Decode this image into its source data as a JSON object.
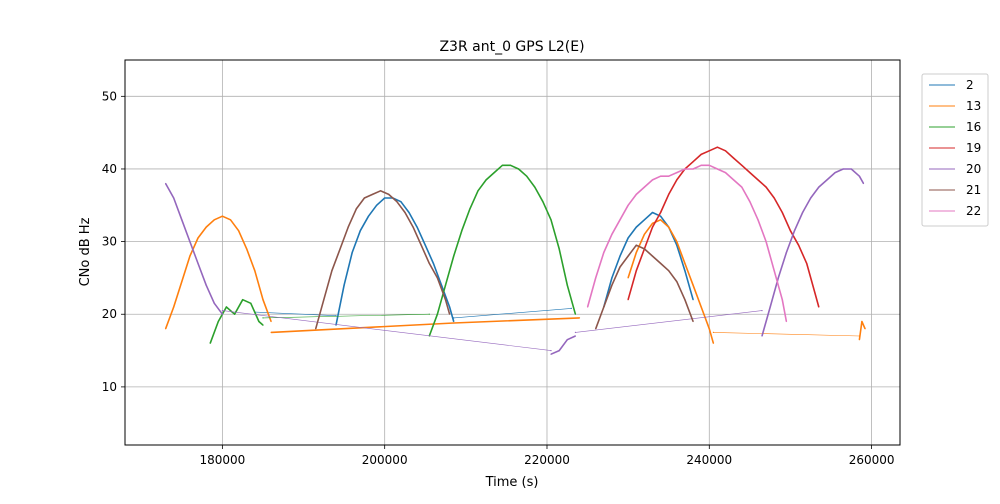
{
  "chart_data": {
    "type": "line",
    "title": "Z3R ant_0 GPS L2(E)",
    "xlabel": "Time (s)",
    "ylabel": "CNo dB Hz",
    "xlim": [
      168000,
      263500
    ],
    "ylim": [
      2,
      55
    ],
    "xticks": [
      180000,
      200000,
      220000,
      240000,
      260000
    ],
    "yticks": [
      10,
      20,
      30,
      40,
      50
    ],
    "grid": true,
    "legend_position": "outside-right-top",
    "series": [
      {
        "name": "2",
        "color": "#1f77b4",
        "segments": [
          [
            [
              184000,
              20.3
            ],
            [
              194000,
              19.8
            ]
          ],
          [
            [
              194000,
              18.5
            ],
            [
              195000,
              24
            ],
            [
              196000,
              28.5
            ],
            [
              197000,
              31.5
            ],
            [
              198000,
              33.5
            ],
            [
              199000,
              35
            ],
            [
              200000,
              36
            ],
            [
              201000,
              36
            ],
            [
              202000,
              35.5
            ],
            [
              203000,
              34
            ],
            [
              204000,
              32
            ],
            [
              205000,
              29.5
            ],
            [
              206000,
              27
            ],
            [
              207000,
              24
            ],
            [
              208000,
              21
            ],
            [
              208500,
              19
            ]
          ],
          [
            [
              208500,
              19.5
            ],
            [
              223000,
              20.8
            ]
          ],
          [
            [
              227000,
              21
            ],
            [
              228000,
              25
            ],
            [
              229000,
              28
            ],
            [
              230000,
              30.5
            ],
            [
              231000,
              32
            ],
            [
              232000,
              33
            ],
            [
              233000,
              34
            ],
            [
              234000,
              33.5
            ],
            [
              235000,
              32
            ],
            [
              236000,
              29.5
            ],
            [
              237000,
              26
            ],
            [
              238000,
              22
            ]
          ]
        ]
      },
      {
        "name": "13",
        "color": "#ff7f0e",
        "segments": [
          [
            [
              173000,
              18
            ],
            [
              174000,
              21
            ],
            [
              175000,
              24.5
            ],
            [
              176000,
              28
            ],
            [
              177000,
              30.5
            ],
            [
              178000,
              32
            ],
            [
              179000,
              33
            ],
            [
              180000,
              33.5
            ],
            [
              181000,
              33
            ],
            [
              182000,
              31.5
            ],
            [
              183000,
              29
            ],
            [
              184000,
              26
            ],
            [
              185000,
              22
            ],
            [
              186000,
              19
            ]
          ],
          [
            [
              186000,
              17.5
            ],
            [
              208500,
              18.8
            ],
            [
              224000,
              19.5
            ]
          ],
          [
            [
              230000,
              25
            ],
            [
              231000,
              28.5
            ],
            [
              232000,
              31
            ],
            [
              233000,
              32.5
            ],
            [
              234000,
              33
            ],
            [
              235000,
              32
            ],
            [
              236000,
              30
            ],
            [
              237000,
              27
            ],
            [
              238000,
              24
            ],
            [
              239000,
              21
            ],
            [
              240000,
              18
            ],
            [
              240500,
              16
            ]
          ],
          [
            [
              240500,
              17.5
            ],
            [
              258500,
              17
            ]
          ],
          [
            [
              258500,
              16.5
            ],
            [
              258800,
              19
            ],
            [
              259200,
              18
            ]
          ]
        ]
      },
      {
        "name": "16",
        "color": "#2ca02c",
        "segments": [
          [
            [
              178500,
              16
            ],
            [
              179500,
              19
            ],
            [
              180500,
              21
            ],
            [
              181500,
              20
            ],
            [
              182500,
              22
            ],
            [
              183500,
              21.5
            ],
            [
              184500,
              19
            ],
            [
              185000,
              18.5
            ]
          ],
          [
            [
              185000,
              19.5
            ],
            [
              205500,
              20
            ]
          ],
          [
            [
              205500,
              17
            ],
            [
              206500,
              20
            ],
            [
              207500,
              24
            ],
            [
              208500,
              28
            ],
            [
              209500,
              31.5
            ],
            [
              210500,
              34.5
            ],
            [
              211500,
              37
            ],
            [
              212500,
              38.5
            ],
            [
              213500,
              39.5
            ],
            [
              214500,
              40.5
            ],
            [
              215500,
              40.5
            ],
            [
              216500,
              40
            ],
            [
              217500,
              39
            ],
            [
              218500,
              37.5
            ],
            [
              219500,
              35.5
            ],
            [
              220500,
              33
            ],
            [
              221500,
              29
            ],
            [
              222500,
              24
            ],
            [
              223500,
              20
            ]
          ]
        ]
      },
      {
        "name": "19",
        "color": "#d62728",
        "segments": [
          [
            [
              230000,
              22
            ],
            [
              231000,
              26
            ],
            [
              232000,
              29
            ],
            [
              233000,
              32
            ],
            [
              234000,
              34
            ],
            [
              235000,
              36.5
            ],
            [
              236000,
              38.5
            ],
            [
              237000,
              40
            ],
            [
              238000,
              41
            ],
            [
              239000,
              42
            ],
            [
              240000,
              42.5
            ],
            [
              241000,
              43
            ],
            [
              242000,
              42.5
            ],
            [
              243000,
              41.5
            ],
            [
              244000,
              40.5
            ],
            [
              245000,
              39.5
            ],
            [
              246000,
              38.5
            ],
            [
              247000,
              37.5
            ],
            [
              248000,
              36
            ],
            [
              249000,
              34
            ],
            [
              250000,
              31.5
            ],
            [
              251000,
              29.5
            ],
            [
              252000,
              27
            ],
            [
              253000,
              23
            ],
            [
              253500,
              21
            ]
          ]
        ]
      },
      {
        "name": "20",
        "color": "#9467bd",
        "segments": [
          [
            [
              173000,
              38
            ],
            [
              174000,
              36
            ],
            [
              175000,
              33
            ],
            [
              176000,
              30
            ],
            [
              177000,
              27
            ],
            [
              178000,
              24
            ],
            [
              179000,
              21.5
            ],
            [
              180000,
              20
            ]
          ],
          [
            [
              180000,
              20.5
            ],
            [
              220500,
              15
            ]
          ],
          [
            [
              220500,
              14.5
            ],
            [
              221500,
              15
            ],
            [
              222500,
              16.5
            ],
            [
              223500,
              17
            ]
          ],
          [
            [
              223500,
              17.5
            ],
            [
              246500,
              20.5
            ]
          ],
          [
            [
              246500,
              17
            ],
            [
              247500,
              21
            ],
            [
              248500,
              25
            ],
            [
              249500,
              28.5
            ],
            [
              250500,
              31.5
            ],
            [
              251500,
              34
            ],
            [
              252500,
              36
            ],
            [
              253500,
              37.5
            ],
            [
              254500,
              38.5
            ],
            [
              255500,
              39.5
            ],
            [
              256500,
              40
            ],
            [
              257500,
              40
            ],
            [
              258500,
              39
            ],
            [
              259000,
              38
            ]
          ]
        ]
      },
      {
        "name": "21",
        "color": "#8c564b",
        "segments": [
          [
            [
              191500,
              18
            ],
            [
              192500,
              22
            ],
            [
              193500,
              26
            ],
            [
              194500,
              29
            ],
            [
              195500,
              32
            ],
            [
              196500,
              34.5
            ],
            [
              197500,
              36
            ],
            [
              198500,
              36.5
            ],
            [
              199500,
              37
            ],
            [
              200500,
              36.5
            ],
            [
              201500,
              35.5
            ],
            [
              202500,
              34
            ],
            [
              203500,
              32
            ],
            [
              204500,
              29.5
            ],
            [
              205500,
              27
            ],
            [
              206500,
              25
            ],
            [
              207500,
              22
            ],
            [
              208000,
              20
            ]
          ],
          [
            [
              226000,
              18
            ],
            [
              227000,
              21
            ],
            [
              228000,
              24
            ],
            [
              229000,
              26.5
            ],
            [
              230000,
              28
            ],
            [
              231000,
              29.5
            ],
            [
              232000,
              29
            ],
            [
              233000,
              28
            ],
            [
              234000,
              27
            ],
            [
              235000,
              26
            ],
            [
              236000,
              24.5
            ],
            [
              237000,
              22
            ],
            [
              238000,
              19
            ]
          ]
        ]
      },
      {
        "name": "22",
        "color": "#e377c2",
        "segments": [
          [
            [
              225000,
              21
            ],
            [
              226000,
              25
            ],
            [
              227000,
              28.5
            ],
            [
              228000,
              31
            ],
            [
              229000,
              33
            ],
            [
              230000,
              35
            ],
            [
              231000,
              36.5
            ],
            [
              232000,
              37.5
            ],
            [
              233000,
              38.5
            ],
            [
              234000,
              39
            ],
            [
              235000,
              39
            ],
            [
              236000,
              39.5
            ],
            [
              237000,
              40
            ],
            [
              238000,
              40
            ],
            [
              239000,
              40.5
            ],
            [
              240000,
              40.5
            ],
            [
              241000,
              40
            ],
            [
              242000,
              39.5
            ],
            [
              243000,
              38.5
            ],
            [
              244000,
              37.5
            ],
            [
              245000,
              35.5
            ],
            [
              246000,
              33
            ],
            [
              247000,
              30
            ],
            [
              248000,
              26
            ],
            [
              249000,
              22
            ],
            [
              249500,
              19
            ]
          ]
        ]
      }
    ]
  }
}
